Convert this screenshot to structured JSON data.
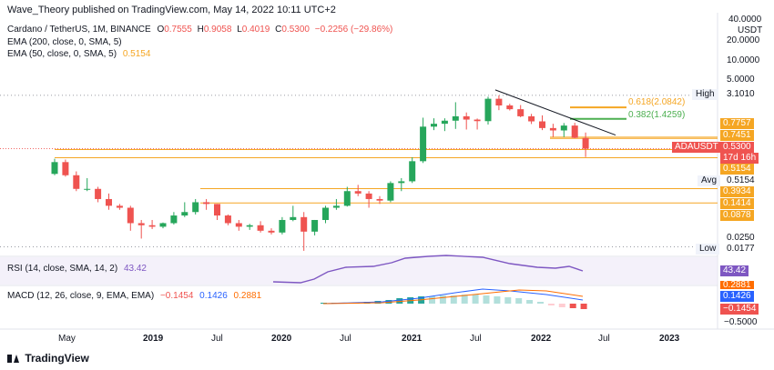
{
  "header": {
    "publisher": "Wave_Theory published on TradingView.com, May 14, 2022 10:11 UTC+2",
    "symbol_line": {
      "name": "Cardano / TetherUS, 1M, BINANCE",
      "o_label": "O",
      "o_value": "0.7555",
      "h_label": "H",
      "h_value": "0.9058",
      "l_label": "L",
      "l_value": "0.4019",
      "c_label": "C",
      "c_value": "0.5300",
      "change": "−0.2256 (−29.86%)"
    },
    "ema200": "EMA (200, close, 0, SMA, 5)",
    "ema50": "EMA (50, close, 0, SMA, 5)",
    "ema50_value": "0.5154"
  },
  "rsi": {
    "label": "RSI (14, close, SMA, 14, 2)",
    "value": "43.42",
    "tag": "43.42"
  },
  "macd": {
    "label": "MACD (12, 26, close, 9, EMA, EMA)",
    "values": [
      "−0.1454",
      "0.1426",
      "0.2881"
    ],
    "tags": [
      "0.2881",
      "0.1426",
      "−0.1454"
    ],
    "axis_label": "−0.5000"
  },
  "price_axis": {
    "currency": "USDT",
    "ticks": [
      "40.0000",
      "20.0000",
      "10.0000",
      "5.0000",
      "0.0250"
    ],
    "high_label": "High",
    "high_value": "3.1010",
    "low_label": "Low",
    "low_value": "0.0177",
    "avg_label": "Avg",
    "avg_value": "0.5154",
    "symbol_tag": "ADAUSDT",
    "symbol_price": "0.5300",
    "countdown": "17d 16h",
    "levels": [
      "0.7757",
      "0.7451",
      "0.5154",
      "0.3934",
      "0.1414",
      "0.0878"
    ]
  },
  "fib": {
    "label1": "0.618(2.0842)",
    "label2": "0.382(1.4259)"
  },
  "time_axis": [
    "May",
    "2019",
    "Jul",
    "2020",
    "Jul",
    "2021",
    "Jul",
    "2022",
    "Jul",
    "2023"
  ],
  "footer": {
    "brand": "TradingView"
  },
  "colors": {
    "up": "#26a65b",
    "down": "#ef5350",
    "orange": "#f5a623",
    "green_fib": "#4caf50",
    "rsi": "#7e57c2",
    "macd_line": "#2962ff",
    "signal": "#ff6d00",
    "red_tag": "#ef5350"
  },
  "chart_data": {
    "type": "candlestick",
    "symbol": "ADAUSDT",
    "interval": "1M",
    "scale": "log",
    "candles": [
      {
        "t": "2018-04",
        "o": 0.23,
        "h": 0.38,
        "l": 0.22,
        "c": 0.34
      },
      {
        "t": "2018-05",
        "o": 0.34,
        "h": 0.37,
        "l": 0.21,
        "c": 0.22
      },
      {
        "t": "2018-06",
        "o": 0.22,
        "h": 0.25,
        "l": 0.13,
        "c": 0.14
      },
      {
        "t": "2018-07",
        "o": 0.14,
        "h": 0.2,
        "l": 0.13,
        "c": 0.14
      },
      {
        "t": "2018-08",
        "o": 0.14,
        "h": 0.15,
        "l": 0.09,
        "c": 0.1
      },
      {
        "t": "2018-09",
        "o": 0.1,
        "h": 0.12,
        "l": 0.07,
        "c": 0.08
      },
      {
        "t": "2018-10",
        "o": 0.08,
        "h": 0.085,
        "l": 0.07,
        "c": 0.075
      },
      {
        "t": "2018-11",
        "o": 0.075,
        "h": 0.08,
        "l": 0.035,
        "c": 0.045
      },
      {
        "t": "2018-12",
        "o": 0.045,
        "h": 0.05,
        "l": 0.027,
        "c": 0.042
      },
      {
        "t": "2019-01",
        "o": 0.042,
        "h": 0.05,
        "l": 0.037,
        "c": 0.04
      },
      {
        "t": "2019-02",
        "o": 0.04,
        "h": 0.046,
        "l": 0.038,
        "c": 0.045
      },
      {
        "t": "2019-03",
        "o": 0.045,
        "h": 0.065,
        "l": 0.043,
        "c": 0.058
      },
      {
        "t": "2019-04",
        "o": 0.058,
        "h": 0.09,
        "l": 0.055,
        "c": 0.065
      },
      {
        "t": "2019-05",
        "o": 0.065,
        "h": 0.1,
        "l": 0.06,
        "c": 0.09
      },
      {
        "t": "2019-06",
        "o": 0.09,
        "h": 0.1,
        "l": 0.07,
        "c": 0.085
      },
      {
        "t": "2019-07",
        "o": 0.085,
        "h": 0.085,
        "l": 0.05,
        "c": 0.058
      },
      {
        "t": "2019-08",
        "o": 0.058,
        "h": 0.06,
        "l": 0.042,
        "c": 0.045
      },
      {
        "t": "2019-09",
        "o": 0.045,
        "h": 0.05,
        "l": 0.035,
        "c": 0.04
      },
      {
        "t": "2019-10",
        "o": 0.04,
        "h": 0.044,
        "l": 0.036,
        "c": 0.042
      },
      {
        "t": "2019-11",
        "o": 0.042,
        "h": 0.048,
        "l": 0.033,
        "c": 0.035
      },
      {
        "t": "2019-12",
        "o": 0.035,
        "h": 0.038,
        "l": 0.031,
        "c": 0.033
      },
      {
        "t": "2020-01",
        "o": 0.033,
        "h": 0.055,
        "l": 0.031,
        "c": 0.05
      },
      {
        "t": "2020-02",
        "o": 0.05,
        "h": 0.08,
        "l": 0.048,
        "c": 0.055
      },
      {
        "t": "2020-03",
        "o": 0.055,
        "h": 0.065,
        "l": 0.018,
        "c": 0.034
      },
      {
        "t": "2020-04",
        "o": 0.034,
        "h": 0.05,
        "l": 0.03,
        "c": 0.05
      },
      {
        "t": "2020-05",
        "o": 0.05,
        "h": 0.08,
        "l": 0.045,
        "c": 0.075
      },
      {
        "t": "2020-06",
        "o": 0.075,
        "h": 0.1,
        "l": 0.07,
        "c": 0.08
      },
      {
        "t": "2020-07",
        "o": 0.08,
        "h": 0.15,
        "l": 0.078,
        "c": 0.13
      },
      {
        "t": "2020-08",
        "o": 0.13,
        "h": 0.16,
        "l": 0.11,
        "c": 0.12
      },
      {
        "t": "2020-09",
        "o": 0.12,
        "h": 0.13,
        "l": 0.075,
        "c": 0.1
      },
      {
        "t": "2020-10",
        "o": 0.1,
        "h": 0.11,
        "l": 0.085,
        "c": 0.095
      },
      {
        "t": "2020-11",
        "o": 0.095,
        "h": 0.18,
        "l": 0.09,
        "c": 0.17
      },
      {
        "t": "2020-12",
        "o": 0.17,
        "h": 0.2,
        "l": 0.13,
        "c": 0.18
      },
      {
        "t": "2021-01",
        "o": 0.18,
        "h": 0.4,
        "l": 0.17,
        "c": 0.35
      },
      {
        "t": "2021-02",
        "o": 0.35,
        "h": 1.48,
        "l": 0.33,
        "c": 1.1
      },
      {
        "t": "2021-03",
        "o": 1.1,
        "h": 1.45,
        "l": 0.98,
        "c": 1.21
      },
      {
        "t": "2021-04",
        "o": 1.21,
        "h": 1.45,
        "l": 0.95,
        "c": 1.34
      },
      {
        "t": "2021-05",
        "o": 1.34,
        "h": 2.47,
        "l": 1.02,
        "c": 1.55
      },
      {
        "t": "2021-06",
        "o": 1.55,
        "h": 1.76,
        "l": 1.0,
        "c": 1.39
      },
      {
        "t": "2021-07",
        "o": 1.39,
        "h": 1.44,
        "l": 1.0,
        "c": 1.32
      },
      {
        "t": "2021-08",
        "o": 1.32,
        "h": 2.96,
        "l": 1.18,
        "c": 2.77
      },
      {
        "t": "2021-09",
        "o": 2.77,
        "h": 3.1,
        "l": 1.9,
        "c": 2.22
      },
      {
        "t": "2021-10",
        "o": 2.22,
        "h": 2.35,
        "l": 1.88,
        "c": 1.96
      },
      {
        "t": "2021-11",
        "o": 1.96,
        "h": 2.25,
        "l": 1.5,
        "c": 1.55
      },
      {
        "t": "2021-12",
        "o": 1.55,
        "h": 1.68,
        "l": 1.2,
        "c": 1.31
      },
      {
        "t": "2022-01",
        "o": 1.31,
        "h": 1.6,
        "l": 0.98,
        "c": 1.05
      },
      {
        "t": "2022-02",
        "o": 1.05,
        "h": 1.21,
        "l": 0.78,
        "c": 0.97
      },
      {
        "t": "2022-03",
        "o": 0.97,
        "h": 1.24,
        "l": 0.78,
        "c": 1.14
      },
      {
        "t": "2022-04",
        "o": 1.14,
        "h": 1.25,
        "l": 0.75,
        "c": 0.76
      },
      {
        "t": "2022-05",
        "o": 0.7555,
        "h": 0.9058,
        "l": 0.4019,
        "c": 0.53
      }
    ],
    "horizontal_levels": [
      0.7757,
      0.7451,
      0.5154,
      0.3934,
      0.1414,
      0.0878
    ],
    "fib_levels": [
      2.0842,
      1.4259
    ],
    "high": 3.101,
    "low": 0.0177
  }
}
